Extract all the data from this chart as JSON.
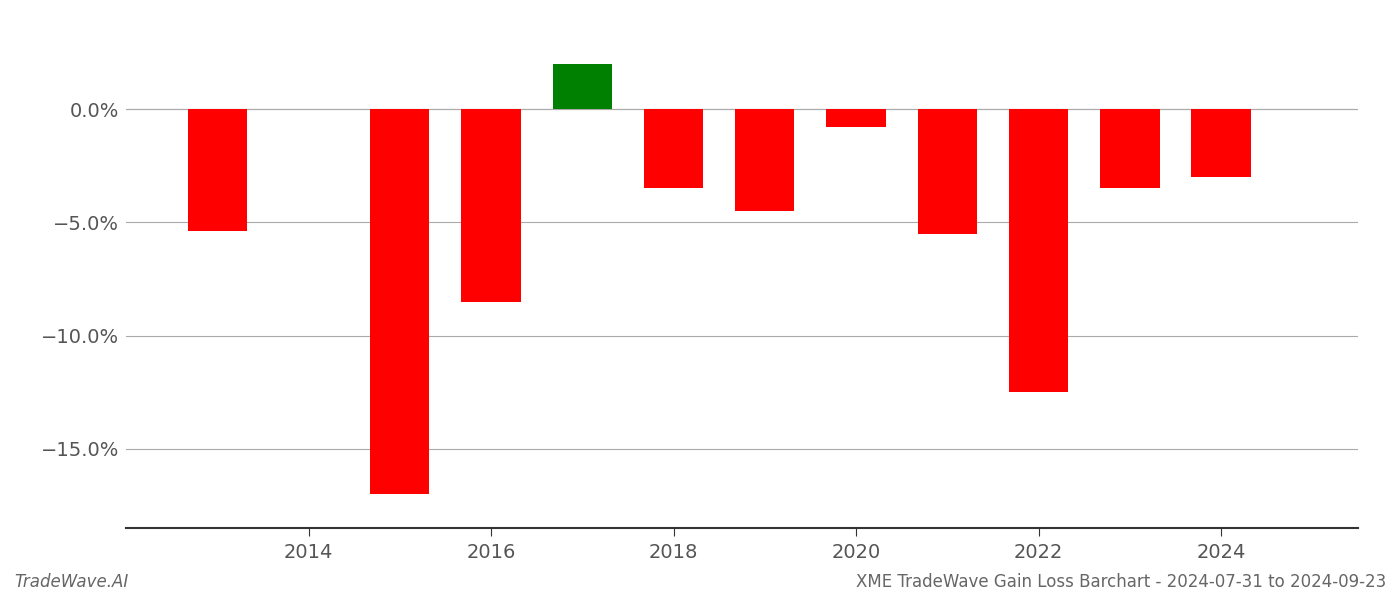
{
  "years": [
    2013,
    2015,
    2016,
    2017,
    2018,
    2019,
    2020,
    2021,
    2022,
    2023,
    2024
  ],
  "values": [
    -5.4,
    -17.0,
    -8.5,
    2.0,
    -3.5,
    -4.5,
    -0.8,
    -5.5,
    -12.5,
    -3.5,
    -3.0
  ],
  "bar_colors": [
    "#ff0000",
    "#ff0000",
    "#ff0000",
    "#008000",
    "#ff0000",
    "#ff0000",
    "#ff0000",
    "#ff0000",
    "#ff0000",
    "#ff0000",
    "#ff0000"
  ],
  "xlim": [
    2012.0,
    2025.5
  ],
  "ylim": [
    -18.5,
    3.5
  ],
  "yticks": [
    0.0,
    -5.0,
    -10.0,
    -15.0
  ],
  "ytick_labels": [
    "0.0%",
    "−5.0%",
    "−10.0%",
    "−15.0%"
  ],
  "xtick_positions": [
    2014,
    2016,
    2018,
    2020,
    2022,
    2024
  ],
  "bar_width": 0.65,
  "background_color": "#ffffff",
  "grid_color": "#aaaaaa",
  "bottom_left_text": "TradeWave.AI",
  "bottom_right_text": "XME TradeWave Gain Loss Barchart - 2024-07-31 to 2024-09-23",
  "spine_color": "#333333",
  "tick_label_color": "#555555",
  "bottom_text_color": "#666666",
  "figsize": [
    14.0,
    6.0
  ],
  "dpi": 100,
  "font_family": "DejaVu Sans"
}
